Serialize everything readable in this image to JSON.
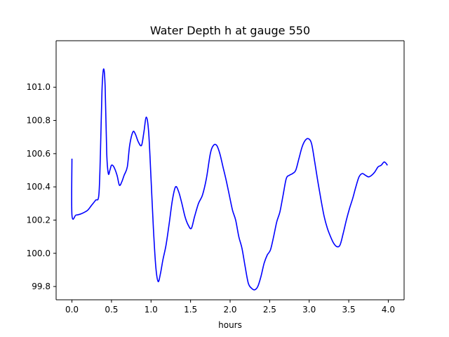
{
  "chart_data": {
    "type": "line",
    "title": "Water Depth h at gauge 550",
    "xlabel": "hours",
    "ylabel": "",
    "xlim": [
      -0.2,
      4.2
    ],
    "ylim": [
      99.72,
      101.28
    ],
    "xticks": [
      0.0,
      0.5,
      1.0,
      1.5,
      2.0,
      2.5,
      3.0,
      3.5,
      4.0
    ],
    "xtick_labels": [
      "0.0",
      "0.5",
      "1.0",
      "1.5",
      "2.0",
      "2.5",
      "3.0",
      "3.5",
      "4.0"
    ],
    "yticks": [
      99.8,
      100.0,
      100.2,
      100.4,
      100.6,
      100.8,
      101.0
    ],
    "ytick_labels": [
      "99.8",
      "100.0",
      "100.2",
      "100.4",
      "100.6",
      "100.8",
      "101.0"
    ],
    "grid": false,
    "series": [
      {
        "color": "#0000ff",
        "x": [
          0.0,
          0.0,
          0.05,
          0.1,
          0.15,
          0.2,
          0.25,
          0.3,
          0.34,
          0.36,
          0.38,
          0.4,
          0.42,
          0.44,
          0.46,
          0.48,
          0.5,
          0.53,
          0.57,
          0.6,
          0.63,
          0.66,
          0.7,
          0.73,
          0.77,
          0.8,
          0.84,
          0.88,
          0.91,
          0.94,
          0.97,
          1.0,
          1.03,
          1.06,
          1.09,
          1.12,
          1.15,
          1.19,
          1.23,
          1.27,
          1.31,
          1.35,
          1.39,
          1.43,
          1.47,
          1.51,
          1.55,
          1.6,
          1.65,
          1.7,
          1.75,
          1.79,
          1.83,
          1.87,
          1.91,
          1.95,
          1.99,
          2.03,
          2.07,
          2.11,
          2.15,
          2.19,
          2.23,
          2.27,
          2.31,
          2.35,
          2.39,
          2.43,
          2.47,
          2.51,
          2.55,
          2.59,
          2.63,
          2.67,
          2.71,
          2.75,
          2.79,
          2.83,
          2.87,
          2.91,
          2.95,
          2.99,
          3.03,
          3.07,
          3.11,
          3.15,
          3.19,
          3.23,
          3.27,
          3.31,
          3.35,
          3.39,
          3.43,
          3.47,
          3.51,
          3.55,
          3.59,
          3.63,
          3.67,
          3.71,
          3.75,
          3.79,
          3.83,
          3.87,
          3.91,
          3.95,
          3.99
        ],
        "y": [
          100.57,
          100.23,
          100.23,
          100.235,
          100.245,
          100.26,
          100.29,
          100.32,
          100.35,
          100.6,
          100.98,
          101.11,
          101.0,
          100.6,
          100.48,
          100.5,
          100.53,
          100.52,
          100.47,
          100.41,
          100.43,
          100.47,
          100.52,
          100.65,
          100.73,
          100.72,
          100.67,
          100.65,
          100.73,
          100.82,
          100.73,
          100.45,
          100.15,
          99.92,
          99.83,
          99.88,
          99.96,
          100.05,
          100.18,
          100.32,
          100.4,
          100.37,
          100.3,
          100.22,
          100.17,
          100.15,
          100.22,
          100.3,
          100.35,
          100.45,
          100.6,
          100.65,
          100.65,
          100.6,
          100.52,
          100.44,
          100.35,
          100.26,
          100.2,
          100.1,
          100.03,
          99.92,
          99.82,
          99.79,
          99.78,
          99.8,
          99.86,
          99.94,
          99.99,
          100.02,
          100.1,
          100.19,
          100.25,
          100.35,
          100.45,
          100.47,
          100.48,
          100.5,
          100.57,
          100.64,
          100.68,
          100.69,
          100.66,
          100.55,
          100.43,
          100.32,
          100.22,
          100.15,
          100.1,
          100.06,
          100.04,
          100.05,
          100.12,
          100.2,
          100.27,
          100.33,
          100.4,
          100.46,
          100.48,
          100.47,
          100.46,
          100.47,
          100.49,
          100.52,
          100.53,
          100.55,
          100.53
        ]
      }
    ]
  }
}
